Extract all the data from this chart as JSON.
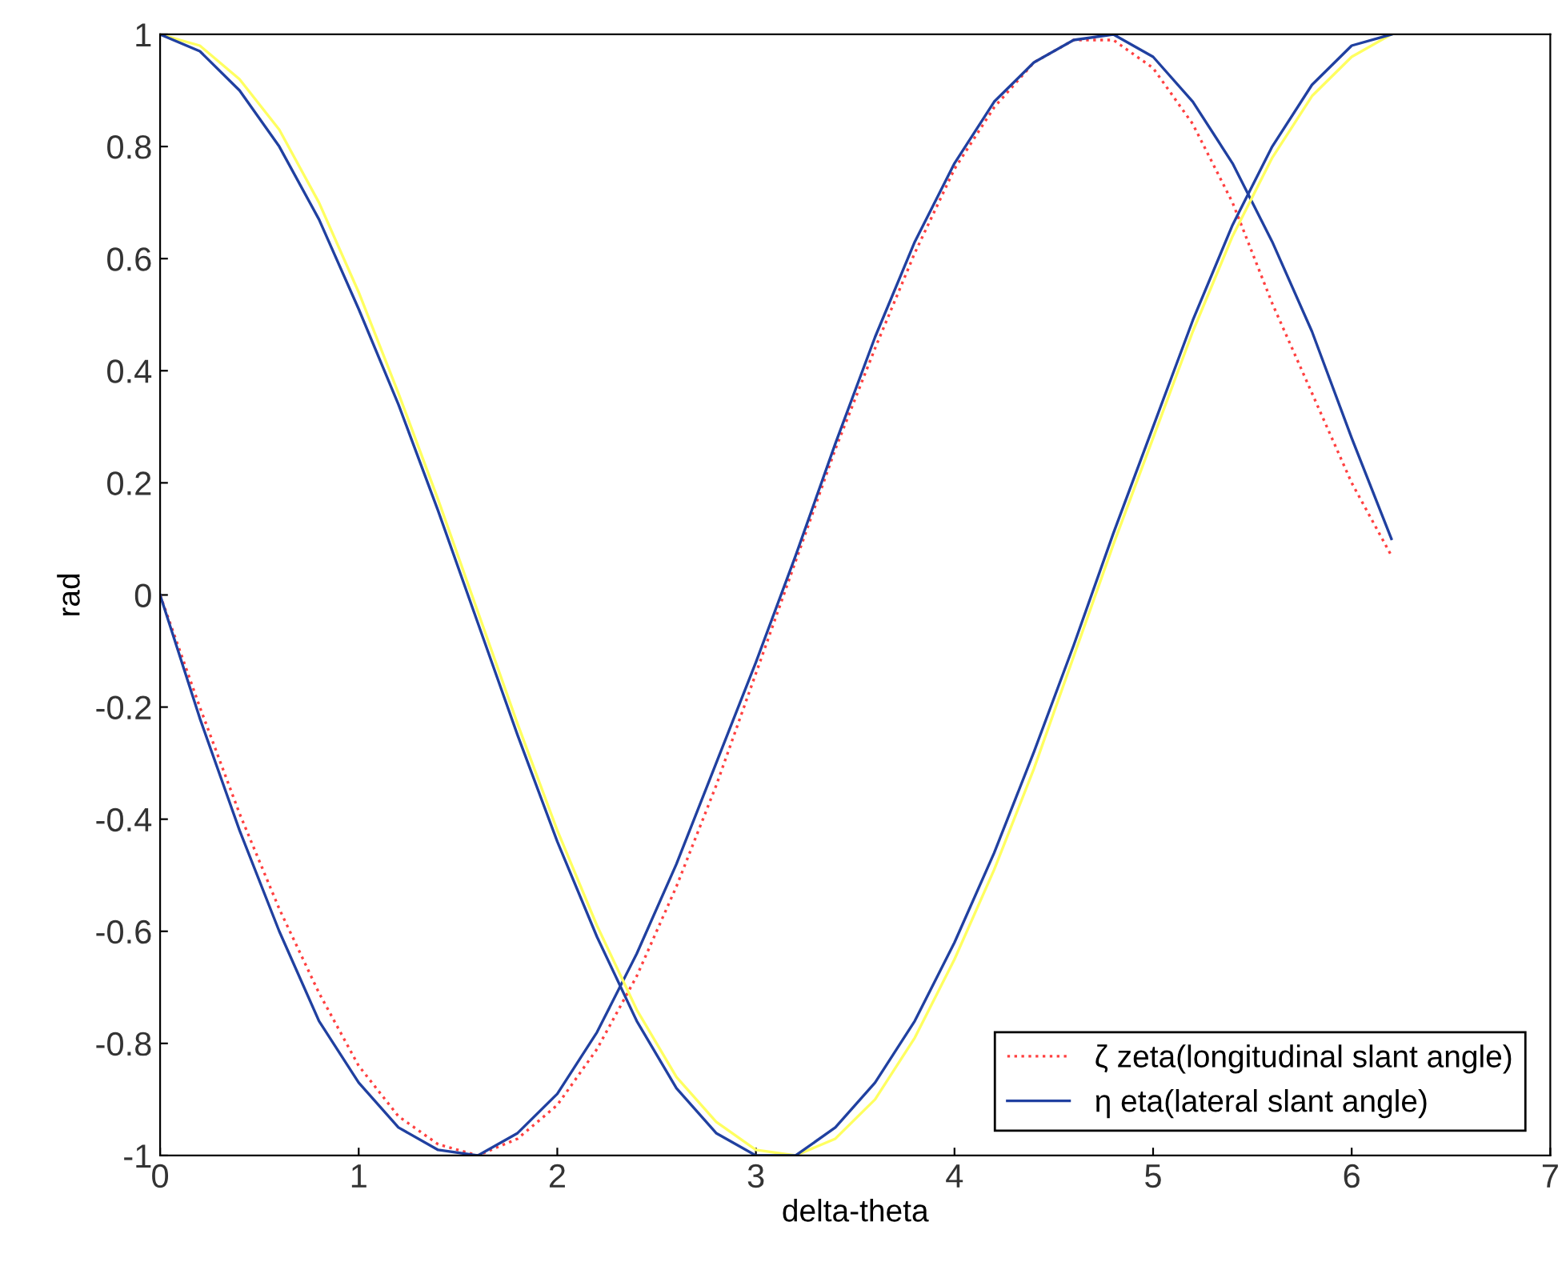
{
  "chart_data": {
    "type": "line",
    "xlabel": "delta-theta",
    "ylabel": "rad",
    "x": [
      0,
      0.2,
      0.4,
      0.6,
      0.8,
      1.0,
      1.2,
      1.4,
      1.6,
      1.8,
      2.0,
      2.2,
      2.4,
      2.6,
      2.8,
      3.0,
      3.2,
      3.4,
      3.6,
      3.8,
      4.0,
      4.2,
      4.4,
      4.6,
      4.8,
      5.0,
      5.2,
      5.4,
      5.6,
      5.8,
      6.0,
      6.2
    ],
    "series": [
      {
        "name": "ζ zeta(longitudinal slant angle)",
        "color": "#ff4040",
        "line_style": "dotted",
        "values": [
          0,
          -0.2,
          -0.39,
          -0.56,
          -0.71,
          -0.84,
          -0.93,
          -0.98,
          -1,
          -0.97,
          -0.91,
          -0.81,
          -0.68,
          -0.52,
          -0.34,
          -0.14,
          0.06,
          0.26,
          0.44,
          0.61,
          0.76,
          0.87,
          0.95,
          0.99,
          0.99,
          0.94,
          0.84,
          0.7,
          0.52,
          0.36,
          0.2,
          0.07
        ]
      },
      {
        "name": "η eta(lateral slant angle)",
        "color": "#2040a0",
        "line_style": "solid",
        "values": [
          0,
          -0.22,
          -0.42,
          -0.6,
          -0.76,
          -0.87,
          -0.95,
          -0.99,
          -1,
          -0.96,
          -0.89,
          -0.78,
          -0.64,
          -0.48,
          -0.3,
          -0.12,
          0.07,
          0.27,
          0.46,
          0.63,
          0.77,
          0.88,
          0.95,
          0.99,
          1,
          0.96,
          0.88,
          0.77,
          0.63,
          0.47,
          0.28,
          0.1
        ]
      },
      {
        "color": "#ffff60",
        "line_style": "solid",
        "values": [
          1,
          0.98,
          0.92,
          0.83,
          0.7,
          0.54,
          0.36,
          0.17,
          -0.03,
          -0.23,
          -0.42,
          -0.59,
          -0.74,
          -0.86,
          -0.94,
          -0.99,
          -1,
          -0.97,
          -0.9,
          -0.79,
          -0.65,
          -0.49,
          -0.31,
          -0.11,
          0.09,
          0.28,
          0.47,
          0.64,
          0.78,
          0.89,
          0.96,
          1
        ]
      },
      {
        "color": "#2040a0",
        "line_style": "solid",
        "values": [
          1,
          0.97,
          0.9,
          0.8,
          0.67,
          0.51,
          0.34,
          0.15,
          -0.05,
          -0.25,
          -0.44,
          -0.61,
          -0.76,
          -0.88,
          -0.96,
          -1,
          -1,
          -0.95,
          -0.87,
          -0.76,
          -0.62,
          -0.46,
          -0.28,
          -0.09,
          0.11,
          0.3,
          0.49,
          0.66,
          0.8,
          0.91,
          0.98,
          1
        ]
      }
    ],
    "xlim": [
      0,
      7
    ],
    "ylim": [
      -1,
      1
    ],
    "xticks": [
      0,
      1,
      2,
      3,
      4,
      5,
      6,
      7
    ],
    "yticks": [
      -1,
      -0.8,
      -0.6,
      -0.4,
      -0.2,
      0,
      0.2,
      0.4,
      0.6,
      0.8,
      1
    ],
    "grid": false,
    "legend": "bottom right"
  }
}
